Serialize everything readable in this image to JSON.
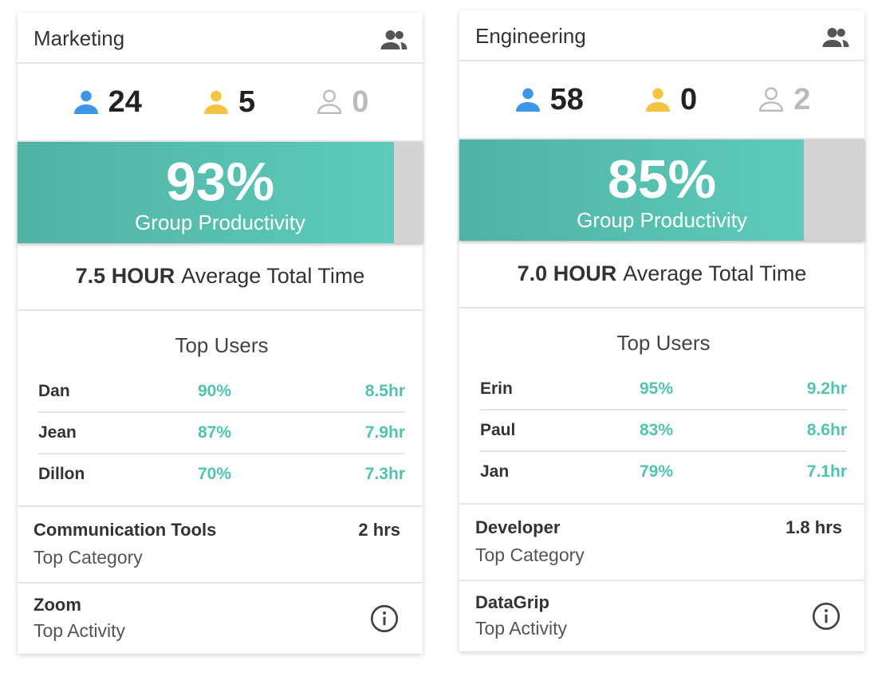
{
  "cards": [
    {
      "title": "Marketing",
      "counts": [
        24,
        5,
        0
      ],
      "productivity": {
        "value": 93,
        "label": "93%"
      },
      "productivity_label": "Group Productivity",
      "avg_time": "7.5 HOUR",
      "avg_label": "Average Total Time",
      "top_users_title": "Top Users",
      "top_users": [
        [
          "Dan",
          "90%",
          "8.5hr"
        ],
        [
          "Jean",
          "87%",
          "7.9hr"
        ],
        [
          "Dillon",
          "70%",
          "7.3hr"
        ]
      ],
      "category": "Communication Tools",
      "category_time": "2 hrs",
      "category_label": "Top Category",
      "activity": "Zoom",
      "activity_label": "Top Activity"
    },
    {
      "title": "Engineering",
      "counts": [
        58,
        0,
        2
      ],
      "productivity": {
        "value": 85,
        "label": "85%"
      },
      "productivity_label": "Group Productivity",
      "avg_time": "7.0 HOUR",
      "avg_label": "Average Total Time",
      "top_users_title": "Top Users",
      "top_users": [
        [
          "Erin",
          "95%",
          "9.2hr"
        ],
        [
          "Paul",
          "83%",
          "8.6hr"
        ],
        [
          "Jan",
          "79%",
          "7.1hr"
        ]
      ],
      "category": "Developer",
      "category_time": "1.8 hrs",
      "category_label": "Top Category",
      "activity": "DataGrip",
      "activity_label": "Top Activity"
    }
  ]
}
